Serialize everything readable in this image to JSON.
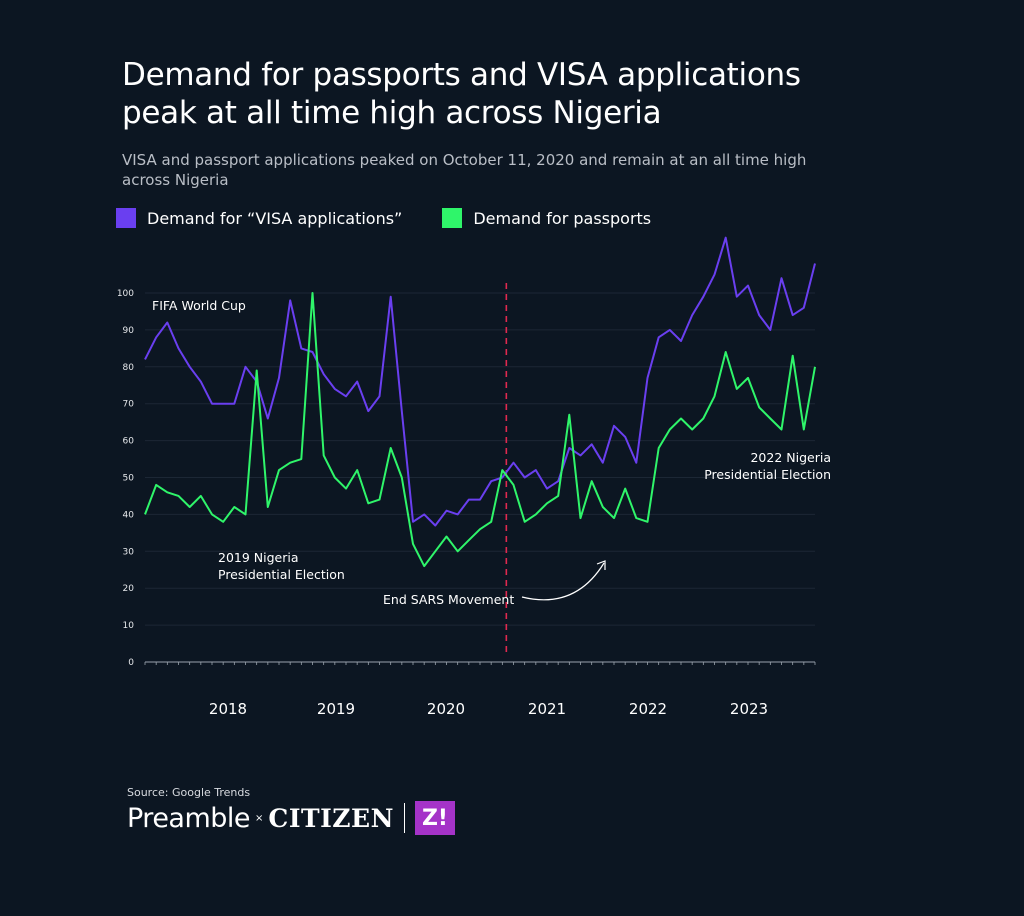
{
  "header": {
    "title": "Demand for passports and VISA applications peak at all time high across Nigeria",
    "subtitle": "VISA and passport applications peaked on October 11, 2020 and remain at an all time high across Nigeria"
  },
  "colors": {
    "background": "#0c1622",
    "visa": "#6a3ff0",
    "passports": "#2ff56a",
    "marker": "#e0294f",
    "grid": "#1c2735"
  },
  "chart_data": {
    "type": "line",
    "title": "Demand for passports and VISA applications peak at all time high across Nigeria",
    "xlabel": "",
    "ylabel": "",
    "ylim": [
      0,
      115
    ],
    "yticks": [
      0,
      10,
      20,
      30,
      40,
      50,
      60,
      70,
      80,
      90,
      100
    ],
    "grid": true,
    "legend_placement": "top-left",
    "year_labels": [
      "2018",
      "2019",
      "2020",
      "2021",
      "2022",
      "2023"
    ],
    "x": [
      "2018-02",
      "2018-03",
      "2018-04",
      "2018-05",
      "2018-06",
      "2018-07",
      "2018-08",
      "2018-09",
      "2018-10",
      "2018-11",
      "2018-12",
      "2019-01",
      "2019-02",
      "2019-03",
      "2019-04",
      "2019-05",
      "2019-06",
      "2019-07",
      "2019-08",
      "2019-09",
      "2019-10",
      "2019-11",
      "2019-12",
      "2020-01",
      "2020-02",
      "2020-03",
      "2020-04",
      "2020-05",
      "2020-06",
      "2020-07",
      "2020-08",
      "2020-09",
      "2020-10",
      "2020-11",
      "2020-12",
      "2021-01",
      "2021-02",
      "2021-03",
      "2021-04",
      "2021-05",
      "2021-06",
      "2021-07",
      "2021-08",
      "2021-09",
      "2021-10",
      "2021-11",
      "2021-12",
      "2022-01",
      "2022-02",
      "2022-03",
      "2022-04",
      "2022-05",
      "2022-06",
      "2022-07",
      "2022-08",
      "2022-09",
      "2022-10",
      "2022-11",
      "2022-12",
      "2023-01",
      "2023-02"
    ],
    "series": [
      {
        "name": "Demand for “VISA applications”",
        "color": "#6a3ff0",
        "values": [
          82,
          88,
          92,
          85,
          80,
          76,
          70,
          70,
          70,
          80,
          76,
          66,
          77,
          98,
          85,
          84,
          78,
          74,
          72,
          76,
          68,
          72,
          99,
          68,
          38,
          40,
          37,
          41,
          40,
          44,
          44,
          49,
          50,
          54,
          50,
          52,
          47,
          49,
          58,
          56,
          59,
          54,
          64,
          61,
          54,
          77,
          88,
          90,
          87,
          94,
          99,
          105,
          115,
          99,
          102,
          94,
          90,
          104,
          94,
          96,
          108
        ]
      },
      {
        "name": "Demand for passports",
        "color": "#2ff56a",
        "values": [
          40,
          48,
          46,
          45,
          42,
          45,
          40,
          38,
          42,
          40,
          79,
          42,
          52,
          54,
          55,
          100,
          56,
          50,
          47,
          52,
          43,
          44,
          58,
          50,
          32,
          26,
          30,
          34,
          30,
          33,
          36,
          38,
          52,
          48,
          38,
          40,
          43,
          45,
          67,
          39,
          49,
          42,
          39,
          47,
          39,
          38,
          58,
          63,
          66,
          63,
          66,
          72,
          84,
          74,
          77,
          69,
          66,
          63,
          83,
          63,
          80
        ]
      }
    ],
    "annotations": [
      {
        "label": "FIFA World Cup"
      },
      {
        "label": "2019 Nigeria Presidential Election"
      },
      {
        "label": "End SARS Movement",
        "x": "2020-10"
      },
      {
        "label": "2022 Nigeria Presidential Election"
      }
    ]
  },
  "annotations": {
    "fifa": "FIFA World Cup",
    "election2019_l1": "2019 Nigeria",
    "election2019_l2": "Presidential Election",
    "endsars": "End SARS Movement",
    "election2022_l1": "2022 Nigeria",
    "election2022_l2": "Presidential Election"
  },
  "legend": {
    "visa": "Demand for “VISA applications”",
    "passports": "Demand for passports"
  },
  "footer": {
    "source": "Source: Google Trends",
    "brand1": "Preamble",
    "times": "×",
    "brand2": "CITIZEN",
    "brand3": "Z!"
  }
}
